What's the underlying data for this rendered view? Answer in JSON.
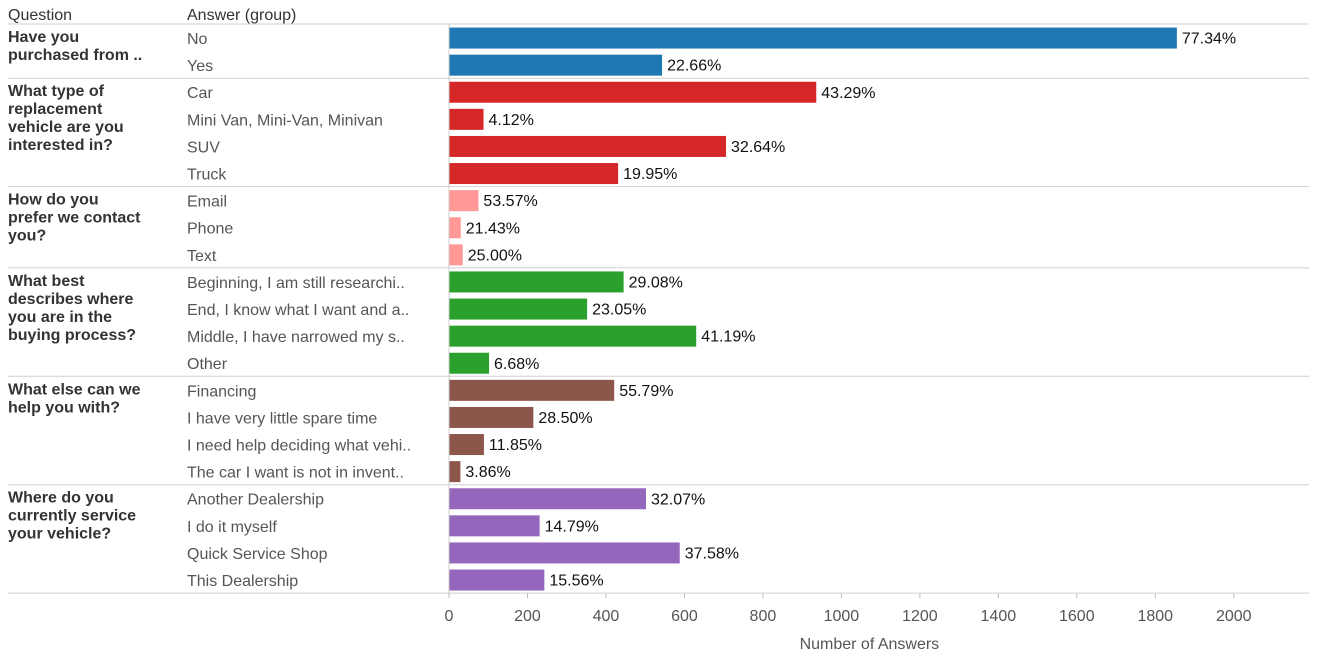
{
  "header": {
    "question": "Question",
    "answer": "Answer (group)"
  },
  "chart_data": {
    "type": "bar",
    "orientation": "horizontal",
    "xlabel": "Number of Answers",
    "xlim": [
      0,
      2100
    ],
    "xticks": [
      "0",
      "200",
      "400",
      "600",
      "800",
      "1000",
      "1200",
      "1400",
      "1600",
      "1800",
      "2000"
    ],
    "grid": false,
    "groups": [
      {
        "question": "Have you purchased from ..",
        "question_lines": [
          "Have you",
          "purchased from .."
        ],
        "color": "#1f77b4",
        "answers": [
          {
            "label": "No",
            "value": 1855,
            "pct": "77.34%"
          },
          {
            "label": "Yes",
            "value": 543,
            "pct": "22.66%"
          }
        ]
      },
      {
        "question": "What type of replacement vehicle are you interested in?",
        "question_lines": [
          "What type of",
          "replacement",
          "vehicle are you",
          "interested in?"
        ],
        "color": "#d62728",
        "answers": [
          {
            "label": "Car",
            "value": 936,
            "pct": "43.29%"
          },
          {
            "label": "Mini Van, Mini-Van, Minivan",
            "value": 88,
            "pct": "4.12%"
          },
          {
            "label": "SUV",
            "value": 706,
            "pct": "32.64%"
          },
          {
            "label": "Truck",
            "value": 431,
            "pct": "19.95%"
          }
        ]
      },
      {
        "question": "How do you prefer we contact you?",
        "question_lines": [
          "How do you",
          "prefer we contact",
          "you?"
        ],
        "color": "#ff9896",
        "answers": [
          {
            "label": "Email",
            "value": 75,
            "pct": "53.57%"
          },
          {
            "label": "Phone",
            "value": 30,
            "pct": "21.43%"
          },
          {
            "label": "Text",
            "value": 35,
            "pct": "25.00%"
          }
        ]
      },
      {
        "question": "What best describes where you are in the buying process?",
        "question_lines": [
          "What best",
          "describes where",
          "you are in the",
          "buying process?"
        ],
        "color": "#2ca02c",
        "answers": [
          {
            "label": "Beginning, I am still researchi..",
            "value": 445,
            "pct": "29.08%"
          },
          {
            "label": "End, I know what I want and a..",
            "value": 352,
            "pct": "23.05%"
          },
          {
            "label": "Middle, I have narrowed my s..",
            "value": 630,
            "pct": "41.19%"
          },
          {
            "label": "Other",
            "value": 102,
            "pct": "6.68%"
          }
        ]
      },
      {
        "question": "What else can we help you with?",
        "question_lines": [
          "What else can we",
          "help you with?"
        ],
        "color": "#8c564b",
        "answers": [
          {
            "label": "Financing",
            "value": 421,
            "pct": "55.79%"
          },
          {
            "label": "I have very little spare time",
            "value": 215,
            "pct": "28.50%"
          },
          {
            "label": "I need help deciding what vehi..",
            "value": 89,
            "pct": "11.85%"
          },
          {
            "label": "The car I want is not in invent..",
            "value": 29,
            "pct": "3.86%"
          }
        ]
      },
      {
        "question": "Where do you currently service your vehicle?",
        "question_lines": [
          "Where do you",
          "currently service",
          "your vehicle?"
        ],
        "color": "#9467bd",
        "answers": [
          {
            "label": "Another Dealership",
            "value": 502,
            "pct": "32.07%"
          },
          {
            "label": "I do it myself",
            "value": 231,
            "pct": "14.79%"
          },
          {
            "label": "Quick Service Shop",
            "value": 588,
            "pct": "37.58%"
          },
          {
            "label": "This Dealership",
            "value": 243,
            "pct": "15.56%"
          }
        ]
      }
    ]
  }
}
